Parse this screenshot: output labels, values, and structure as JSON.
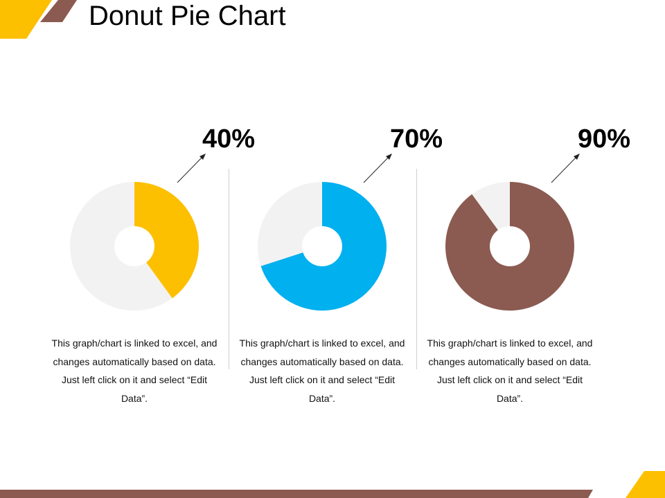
{
  "header": {
    "title": "Donut Pie Chart"
  },
  "colors": {
    "accent_yellow": "#FDC000",
    "accent_brown": "#8B5A50",
    "remainder": "#F2F2F2"
  },
  "chart_data": [
    {
      "type": "pie",
      "style": "donut",
      "label": "40%",
      "values": [
        40,
        60
      ],
      "colors": [
        "#FDC000",
        "#F2F2F2"
      ],
      "description": "This graph/chart is linked to excel, and changes automatically based on data. Just left click on it and select “Edit Data”."
    },
    {
      "type": "pie",
      "style": "donut",
      "label": "70%",
      "values": [
        70,
        30
      ],
      "colors": [
        "#00B0EF",
        "#F2F2F2"
      ],
      "description": "This graph/chart is linked to excel, and changes automatically based on data. Just left click on it and select “Edit Data”."
    },
    {
      "type": "pie",
      "style": "donut",
      "label": "90%",
      "values": [
        90,
        10
      ],
      "colors": [
        "#8B5A50",
        "#F2F2F2"
      ],
      "description": "This graph/chart is linked to excel, and changes automatically based on data. Just left click on it and select “Edit Data”."
    }
  ]
}
